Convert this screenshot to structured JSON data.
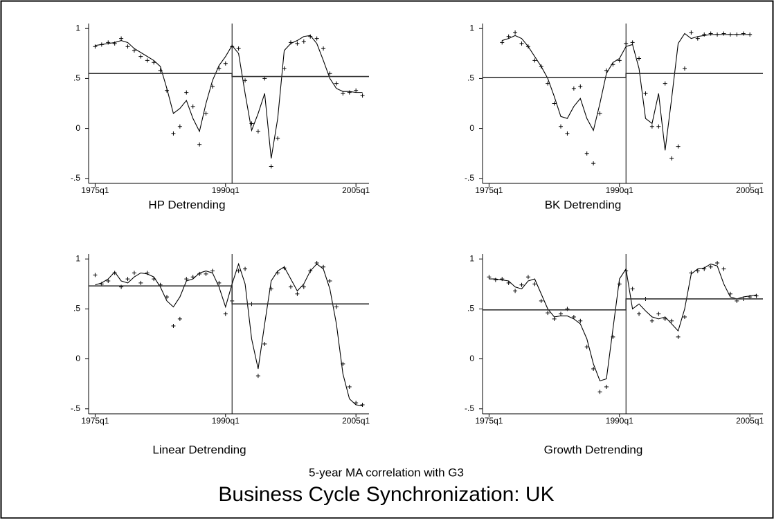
{
  "title": "Business Cycle Synchronization: UK",
  "caption": "5-year MA correlation with G3",
  "chart_data": [
    {
      "type": "line",
      "title": "HP Detrending",
      "x": [
        60,
        63,
        66,
        69,
        72,
        75,
        78,
        81,
        84,
        87,
        90,
        93,
        96,
        99,
        102,
        105,
        108,
        111,
        114,
        117,
        120,
        123,
        126,
        129,
        132,
        135,
        138,
        141,
        144,
        147,
        150,
        153,
        156,
        159,
        162,
        165,
        168,
        171,
        174,
        177,
        180,
        183
      ],
      "series": [
        {
          "mode": "markers",
          "color": "#000000",
          "values": [
            0.82,
            0.84,
            0.86,
            0.85,
            0.9,
            0.82,
            0.78,
            0.72,
            0.68,
            0.66,
            0.58,
            0.38,
            -0.05,
            0.02,
            0.36,
            0.22,
            -0.16,
            0.15,
            0.42,
            0.6,
            0.65,
            0.82,
            0.8,
            0.48,
            0.05,
            -0.03,
            0.5,
            -0.38,
            -0.1,
            0.6,
            0.86,
            0.85,
            0.87,
            0.92,
            0.9,
            0.8,
            0.55,
            0.45,
            0.35,
            0.36,
            0.38,
            0.33
          ]
        },
        {
          "mode": "line",
          "color": "#000000",
          "values": [
            0.83,
            0.84,
            0.85,
            0.86,
            0.88,
            0.86,
            0.8,
            0.76,
            0.72,
            0.68,
            0.62,
            0.4,
            0.15,
            0.2,
            0.28,
            0.1,
            -0.03,
            0.25,
            0.48,
            0.63,
            0.72,
            0.83,
            0.75,
            0.35,
            -0.02,
            0.15,
            0.35,
            -0.3,
            0.1,
            0.78,
            0.85,
            0.88,
            0.92,
            0.93,
            0.85,
            0.68,
            0.5,
            0.4,
            0.37,
            0.37,
            0.36,
            0.36
          ]
        },
        {
          "mode": "step",
          "color": "#333333",
          "x": [
            57,
            123,
            123,
            186
          ],
          "values": [
            0.55,
            0.55,
            0.52,
            0.52
          ]
        }
      ],
      "vline": 123,
      "xlim": [
        57,
        186
      ],
      "ylim": [
        -0.55,
        1.05
      ],
      "xticks": [
        {
          "value": 60,
          "label": "1975q1"
        },
        {
          "value": 120,
          "label": "1990q1"
        },
        {
          "value": 180,
          "label": "2005q1"
        }
      ],
      "yticks": [
        {
          "value": -0.5,
          "label": "-.5"
        },
        0,
        {
          "value": 0.5,
          "label": ".5"
        },
        1
      ]
    },
    {
      "type": "line",
      "title": "BK Detrending",
      "x": [
        66,
        69,
        72,
        75,
        78,
        81,
        84,
        87,
        90,
        93,
        96,
        99,
        102,
        105,
        108,
        111,
        114,
        117,
        120,
        123,
        126,
        129,
        132,
        135,
        138,
        141,
        144,
        147,
        150,
        153,
        156,
        159,
        162,
        165,
        168,
        171,
        174,
        177,
        180
      ],
      "series": [
        {
          "mode": "markers",
          "color": "#000000",
          "values": [
            0.86,
            0.92,
            0.96,
            0.85,
            0.82,
            0.68,
            0.62,
            0.45,
            0.25,
            0.02,
            -0.05,
            0.4,
            0.42,
            -0.25,
            -0.35,
            0.15,
            0.58,
            0.64,
            0.68,
            0.85,
            0.86,
            0.7,
            0.35,
            0.02,
            0.02,
            0.45,
            -0.3,
            -0.18,
            0.6,
            0.96,
            0.9,
            0.94,
            0.95,
            0.94,
            0.95,
            0.94,
            0.94,
            0.95,
            0.94
          ]
        },
        {
          "mode": "line",
          "color": "#000000",
          "values": [
            0.88,
            0.9,
            0.93,
            0.9,
            0.82,
            0.72,
            0.62,
            0.5,
            0.32,
            0.12,
            0.1,
            0.22,
            0.3,
            0.1,
            -0.02,
            0.25,
            0.55,
            0.66,
            0.7,
            0.82,
            0.84,
            0.6,
            0.1,
            0.05,
            0.35,
            -0.22,
            0.3,
            0.85,
            0.95,
            0.9,
            0.92,
            0.93,
            0.94,
            0.94,
            0.94,
            0.94,
            0.94,
            0.94,
            0.94
          ]
        },
        {
          "mode": "step",
          "color": "#333333",
          "x": [
            57,
            123,
            123,
            186
          ],
          "values": [
            0.51,
            0.51,
            0.55,
            0.55
          ]
        }
      ],
      "vline": 123,
      "xlim": [
        57,
        186
      ],
      "ylim": [
        -0.55,
        1.05
      ],
      "xticks": [
        {
          "value": 60,
          "label": "1975q1"
        },
        {
          "value": 120,
          "label": "1990q1"
        },
        {
          "value": 180,
          "label": "2005q1"
        }
      ],
      "yticks": [
        {
          "value": -0.5,
          "label": "-.5"
        },
        0,
        {
          "value": 0.5,
          "label": ".5"
        },
        1
      ]
    },
    {
      "type": "line",
      "title": "Linear Detrending",
      "x": [
        60,
        63,
        66,
        69,
        72,
        75,
        78,
        81,
        84,
        87,
        90,
        93,
        96,
        99,
        102,
        105,
        108,
        111,
        114,
        117,
        120,
        123,
        126,
        129,
        132,
        135,
        138,
        141,
        144,
        147,
        150,
        153,
        156,
        159,
        162,
        165,
        168,
        171,
        174,
        177,
        180,
        183
      ],
      "series": [
        {
          "mode": "markers",
          "color": "#000000",
          "values": [
            0.84,
            0.75,
            0.78,
            0.86,
            0.72,
            0.8,
            0.86,
            0.76,
            0.86,
            0.8,
            0.74,
            0.62,
            0.33,
            0.4,
            0.8,
            0.82,
            0.85,
            0.85,
            0.88,
            0.76,
            0.45,
            0.58,
            0.88,
            0.9,
            0.55,
            -0.17,
            0.15,
            0.7,
            0.86,
            0.91,
            0.72,
            0.65,
            0.72,
            0.88,
            0.96,
            0.92,
            0.78,
            0.52,
            -0.05,
            -0.28,
            -0.44,
            -0.46
          ]
        },
        {
          "mode": "line",
          "color": "#000000",
          "values": [
            0.74,
            0.76,
            0.8,
            0.87,
            0.78,
            0.76,
            0.82,
            0.86,
            0.85,
            0.82,
            0.72,
            0.58,
            0.52,
            0.62,
            0.78,
            0.8,
            0.86,
            0.88,
            0.86,
            0.72,
            0.52,
            0.75,
            0.95,
            0.75,
            0.2,
            -0.1,
            0.35,
            0.78,
            0.88,
            0.92,
            0.8,
            0.68,
            0.75,
            0.88,
            0.95,
            0.9,
            0.7,
            0.35,
            -0.15,
            -0.4,
            -0.46,
            -0.47
          ]
        },
        {
          "mode": "step",
          "color": "#333333",
          "x": [
            57,
            123,
            123,
            186
          ],
          "values": [
            0.73,
            0.73,
            0.55,
            0.55
          ]
        }
      ],
      "vline": 123,
      "xlim": [
        57,
        186
      ],
      "ylim": [
        -0.55,
        1.05
      ],
      "xticks": [
        {
          "value": 60,
          "label": "1975q1"
        },
        {
          "value": 120,
          "label": "1990q1"
        },
        {
          "value": 180,
          "label": "2005q1"
        }
      ],
      "yticks": [
        {
          "value": -0.5,
          "label": "-.5"
        },
        0,
        {
          "value": 0.5,
          "label": ".5"
        },
        1
      ]
    },
    {
      "type": "line",
      "title": "Growth Detrending",
      "x": [
        60,
        63,
        66,
        69,
        72,
        75,
        78,
        81,
        84,
        87,
        90,
        93,
        96,
        99,
        102,
        105,
        108,
        111,
        114,
        117,
        120,
        123,
        126,
        129,
        132,
        135,
        138,
        141,
        144,
        147,
        150,
        153,
        156,
        159,
        162,
        165,
        168,
        171,
        174,
        177,
        180,
        183
      ],
      "series": [
        {
          "mode": "markers",
          "color": "#000000",
          "values": [
            0.82,
            0.79,
            0.8,
            0.76,
            0.68,
            0.74,
            0.82,
            0.75,
            0.58,
            0.46,
            0.4,
            0.45,
            0.5,
            0.42,
            0.38,
            0.12,
            -0.1,
            -0.33,
            -0.28,
            0.22,
            0.75,
            0.88,
            0.7,
            0.45,
            0.6,
            0.38,
            0.45,
            0.4,
            0.38,
            0.22,
            0.42,
            0.86,
            0.88,
            0.9,
            0.92,
            0.96,
            0.9,
            0.65,
            0.58,
            0.6,
            0.62,
            0.63
          ]
        },
        {
          "mode": "line",
          "color": "#000000",
          "values": [
            0.8,
            0.8,
            0.79,
            0.78,
            0.72,
            0.7,
            0.78,
            0.8,
            0.65,
            0.5,
            0.42,
            0.43,
            0.43,
            0.4,
            0.35,
            0.2,
            -0.05,
            -0.22,
            -0.2,
            0.3,
            0.8,
            0.9,
            0.5,
            0.55,
            0.48,
            0.42,
            0.4,
            0.42,
            0.35,
            0.28,
            0.5,
            0.85,
            0.9,
            0.91,
            0.95,
            0.93,
            0.75,
            0.62,
            0.6,
            0.62,
            0.63,
            0.64
          ]
        },
        {
          "mode": "step",
          "color": "#333333",
          "x": [
            57,
            123,
            123,
            186
          ],
          "values": [
            0.49,
            0.49,
            0.6,
            0.6
          ]
        }
      ],
      "vline": 123,
      "xlim": [
        57,
        186
      ],
      "ylim": [
        -0.55,
        1.05
      ],
      "xticks": [
        {
          "value": 60,
          "label": "1975q1"
        },
        {
          "value": 120,
          "label": "1990q1"
        },
        {
          "value": 180,
          "label": "2005q1"
        }
      ],
      "yticks": [
        {
          "value": -0.5,
          "label": "-.5"
        },
        0,
        {
          "value": 0.5,
          "label": ".5"
        },
        1
      ]
    }
  ]
}
